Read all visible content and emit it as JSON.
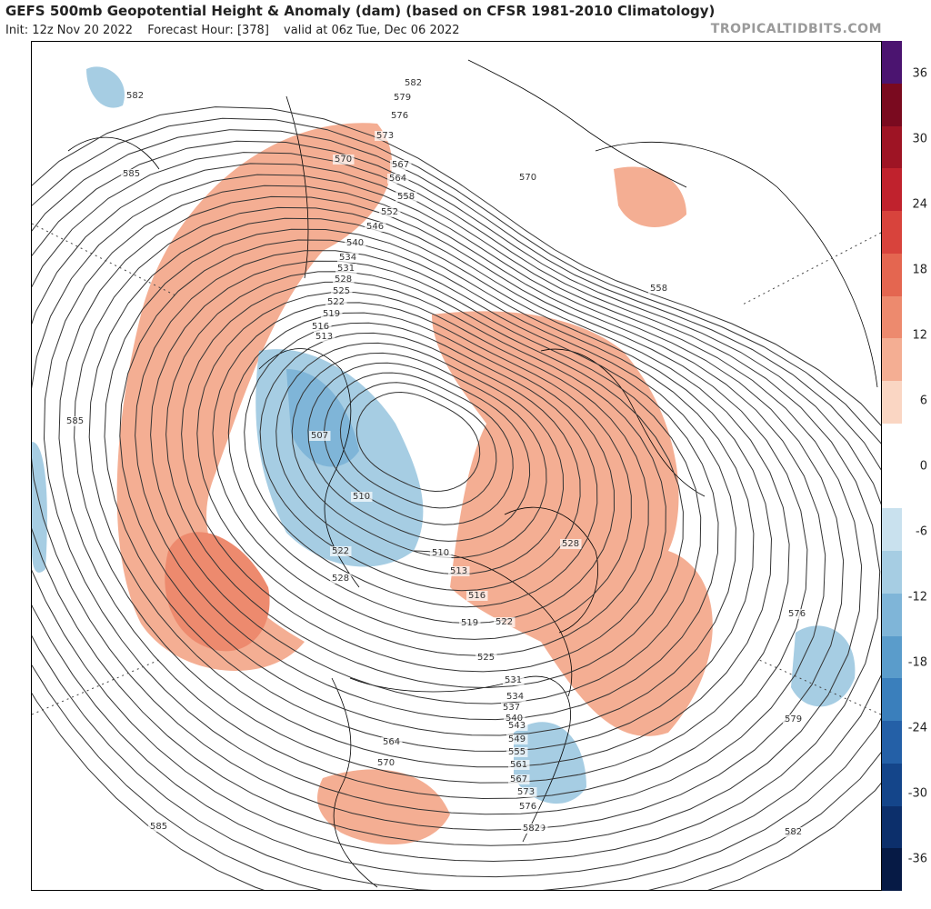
{
  "header": {
    "title": "GEFS 500mb Geopotential Height & Anomaly (dam) (based on CFSR 1981-2010 Climatology)",
    "init": "Init: 12z Nov 20 2022",
    "forecast_hour": "Forecast Hour: [378]",
    "valid": "valid at 06z Tue, Dec 06 2022",
    "brand": "TROPICALTIDBITS.COM"
  },
  "colorbar": {
    "ticks": [
      "36",
      "30",
      "24",
      "18",
      "12",
      "6",
      "0",
      "-6",
      "-12",
      "-18",
      "-24",
      "-30",
      "-36"
    ],
    "colors": [
      "#4b1470",
      "#7a0a1f",
      "#9e1424",
      "#c0222d",
      "#d8433c",
      "#e46650",
      "#ed8a6e",
      "#f4ae93",
      "#fad6c3",
      "#ffffff",
      "#ffffff",
      "#c9e1ee",
      "#a6cde3",
      "#7fb5d8",
      "#5a9ccb",
      "#3a7fbc",
      "#2460a7",
      "#14458a",
      "#0c2f6b",
      "#061a45"
    ]
  },
  "map": {
    "height_contour_labels": [
      "582",
      "579",
      "576",
      "573",
      "570",
      "567",
      "564",
      "558",
      "552",
      "546",
      "540",
      "534",
      "531",
      "528",
      "525",
      "522",
      "519",
      "516",
      "513",
      "507",
      "510",
      "522",
      "528",
      "510",
      "513",
      "516",
      "519",
      "522",
      "525",
      "528",
      "531",
      "534",
      "537",
      "540",
      "543",
      "549",
      "555",
      "561",
      "567",
      "573",
      "576",
      "579",
      "582",
      "585",
      "585",
      "585",
      "582",
      "570",
      "558",
      "576",
      "579",
      "582",
      "564",
      "570"
    ],
    "anomaly_colors": {
      "positive": "#f4ae93",
      "positive_strong": "#ed8a6e",
      "negative": "#a6cde3",
      "negative_strong": "#7fb5d8"
    }
  }
}
